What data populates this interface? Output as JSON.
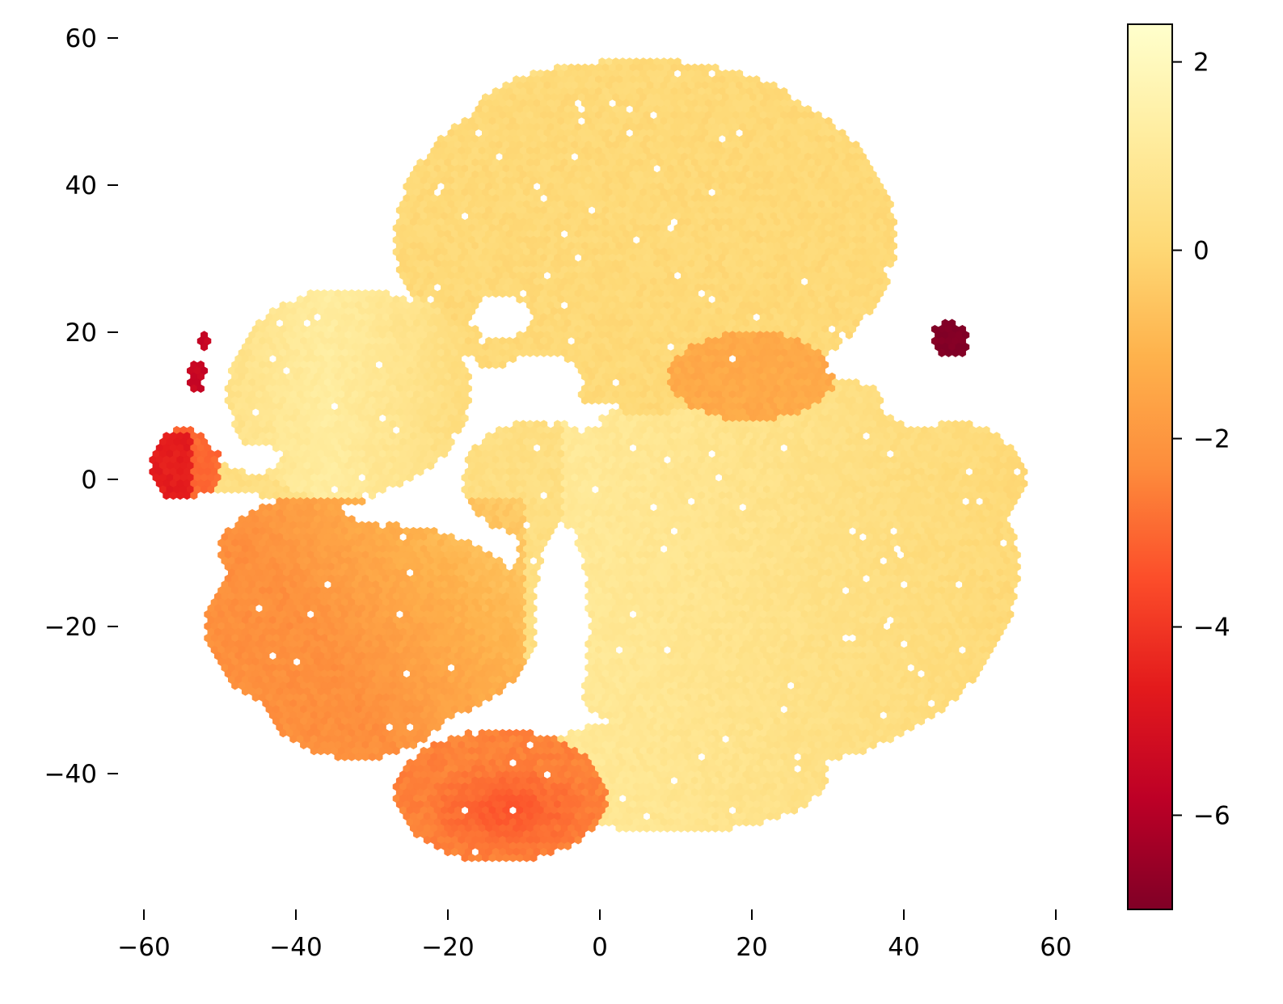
{
  "chart_data": {
    "type": "heatmap",
    "subtype": "hexbin",
    "title": "",
    "xlabel": "",
    "ylabel": "",
    "xlim": [
      -66,
      67
    ],
    "ylim": [
      -58,
      63
    ],
    "x_ticks": [
      -60,
      -40,
      -20,
      0,
      20,
      40,
      60
    ],
    "y_ticks": [
      -40,
      -20,
      0,
      20,
      40,
      60
    ],
    "x_tick_labels": [
      "−60",
      "−40",
      "−20",
      "0",
      "20",
      "40",
      "60"
    ],
    "y_tick_labels": [
      "−40",
      "−20",
      "0",
      "20",
      "40",
      "60"
    ],
    "grid": false,
    "colormap": "YlOrRd_r",
    "colormap_stops": [
      "#800026",
      "#bd0026",
      "#e31a1c",
      "#fc4e2a",
      "#fd8d3c",
      "#feb24c",
      "#fed976",
      "#ffeda0",
      "#ffffcc"
    ],
    "colorbar": {
      "vmin": -7.0,
      "vmax": 2.4,
      "ticks": [
        2,
        0,
        -2,
        -4,
        -6
      ],
      "tick_labels": [
        "2",
        "0",
        "−2",
        "−4",
        "−6"
      ]
    },
    "regions": [
      {
        "name": "upper cluster",
        "x_center": 5,
        "y_center": 35,
        "x_range": [
          -28,
          40
        ],
        "y_range": [
          10,
          56
        ],
        "approx_value": 0.0
      },
      {
        "name": "left cluster",
        "x_center": -33,
        "y_center": 10,
        "x_range": [
          -47,
          -10
        ],
        "y_range": [
          -10,
          26
        ],
        "approx_value": 1.1
      },
      {
        "name": "right cluster",
        "x_center": 20,
        "y_center": -10,
        "x_range": [
          -5,
          56
        ],
        "y_range": [
          -48,
          15
        ],
        "approx_value": 0.3
      },
      {
        "name": "lower-left arm",
        "x_center": -28,
        "y_center": -22,
        "x_range": [
          -55,
          -8
        ],
        "y_range": [
          -40,
          -5
        ],
        "approx_value": -1.4
      },
      {
        "name": "bottom orange cluster",
        "x_center": -15,
        "y_center": -44,
        "x_range": [
          -28,
          1
        ],
        "y_range": [
          -53,
          -32
        ],
        "approx_value": -2.9
      },
      {
        "name": "far left spur",
        "x_center": -56,
        "y_center": 1,
        "x_range": [
          -59,
          -50
        ],
        "y_range": [
          -3,
          7
        ],
        "approx_value": -3.0
      },
      {
        "name": "orange streak",
        "x_center": 18,
        "y_center": 15,
        "x_range": [
          8,
          32
        ],
        "y_range": [
          7,
          23
        ],
        "approx_value": -1.2
      },
      {
        "name": "right dark blob",
        "x_center": 46,
        "y_center": 19,
        "x_range": [
          44,
          49
        ],
        "y_range": [
          16,
          22
        ],
        "approx_value": -7.0
      },
      {
        "name": "left red specks",
        "x_center": -53,
        "y_center": 16,
        "x_range": [
          -55,
          -51
        ],
        "y_range": [
          12,
          20
        ],
        "approx_value": -5.5
      }
    ]
  }
}
